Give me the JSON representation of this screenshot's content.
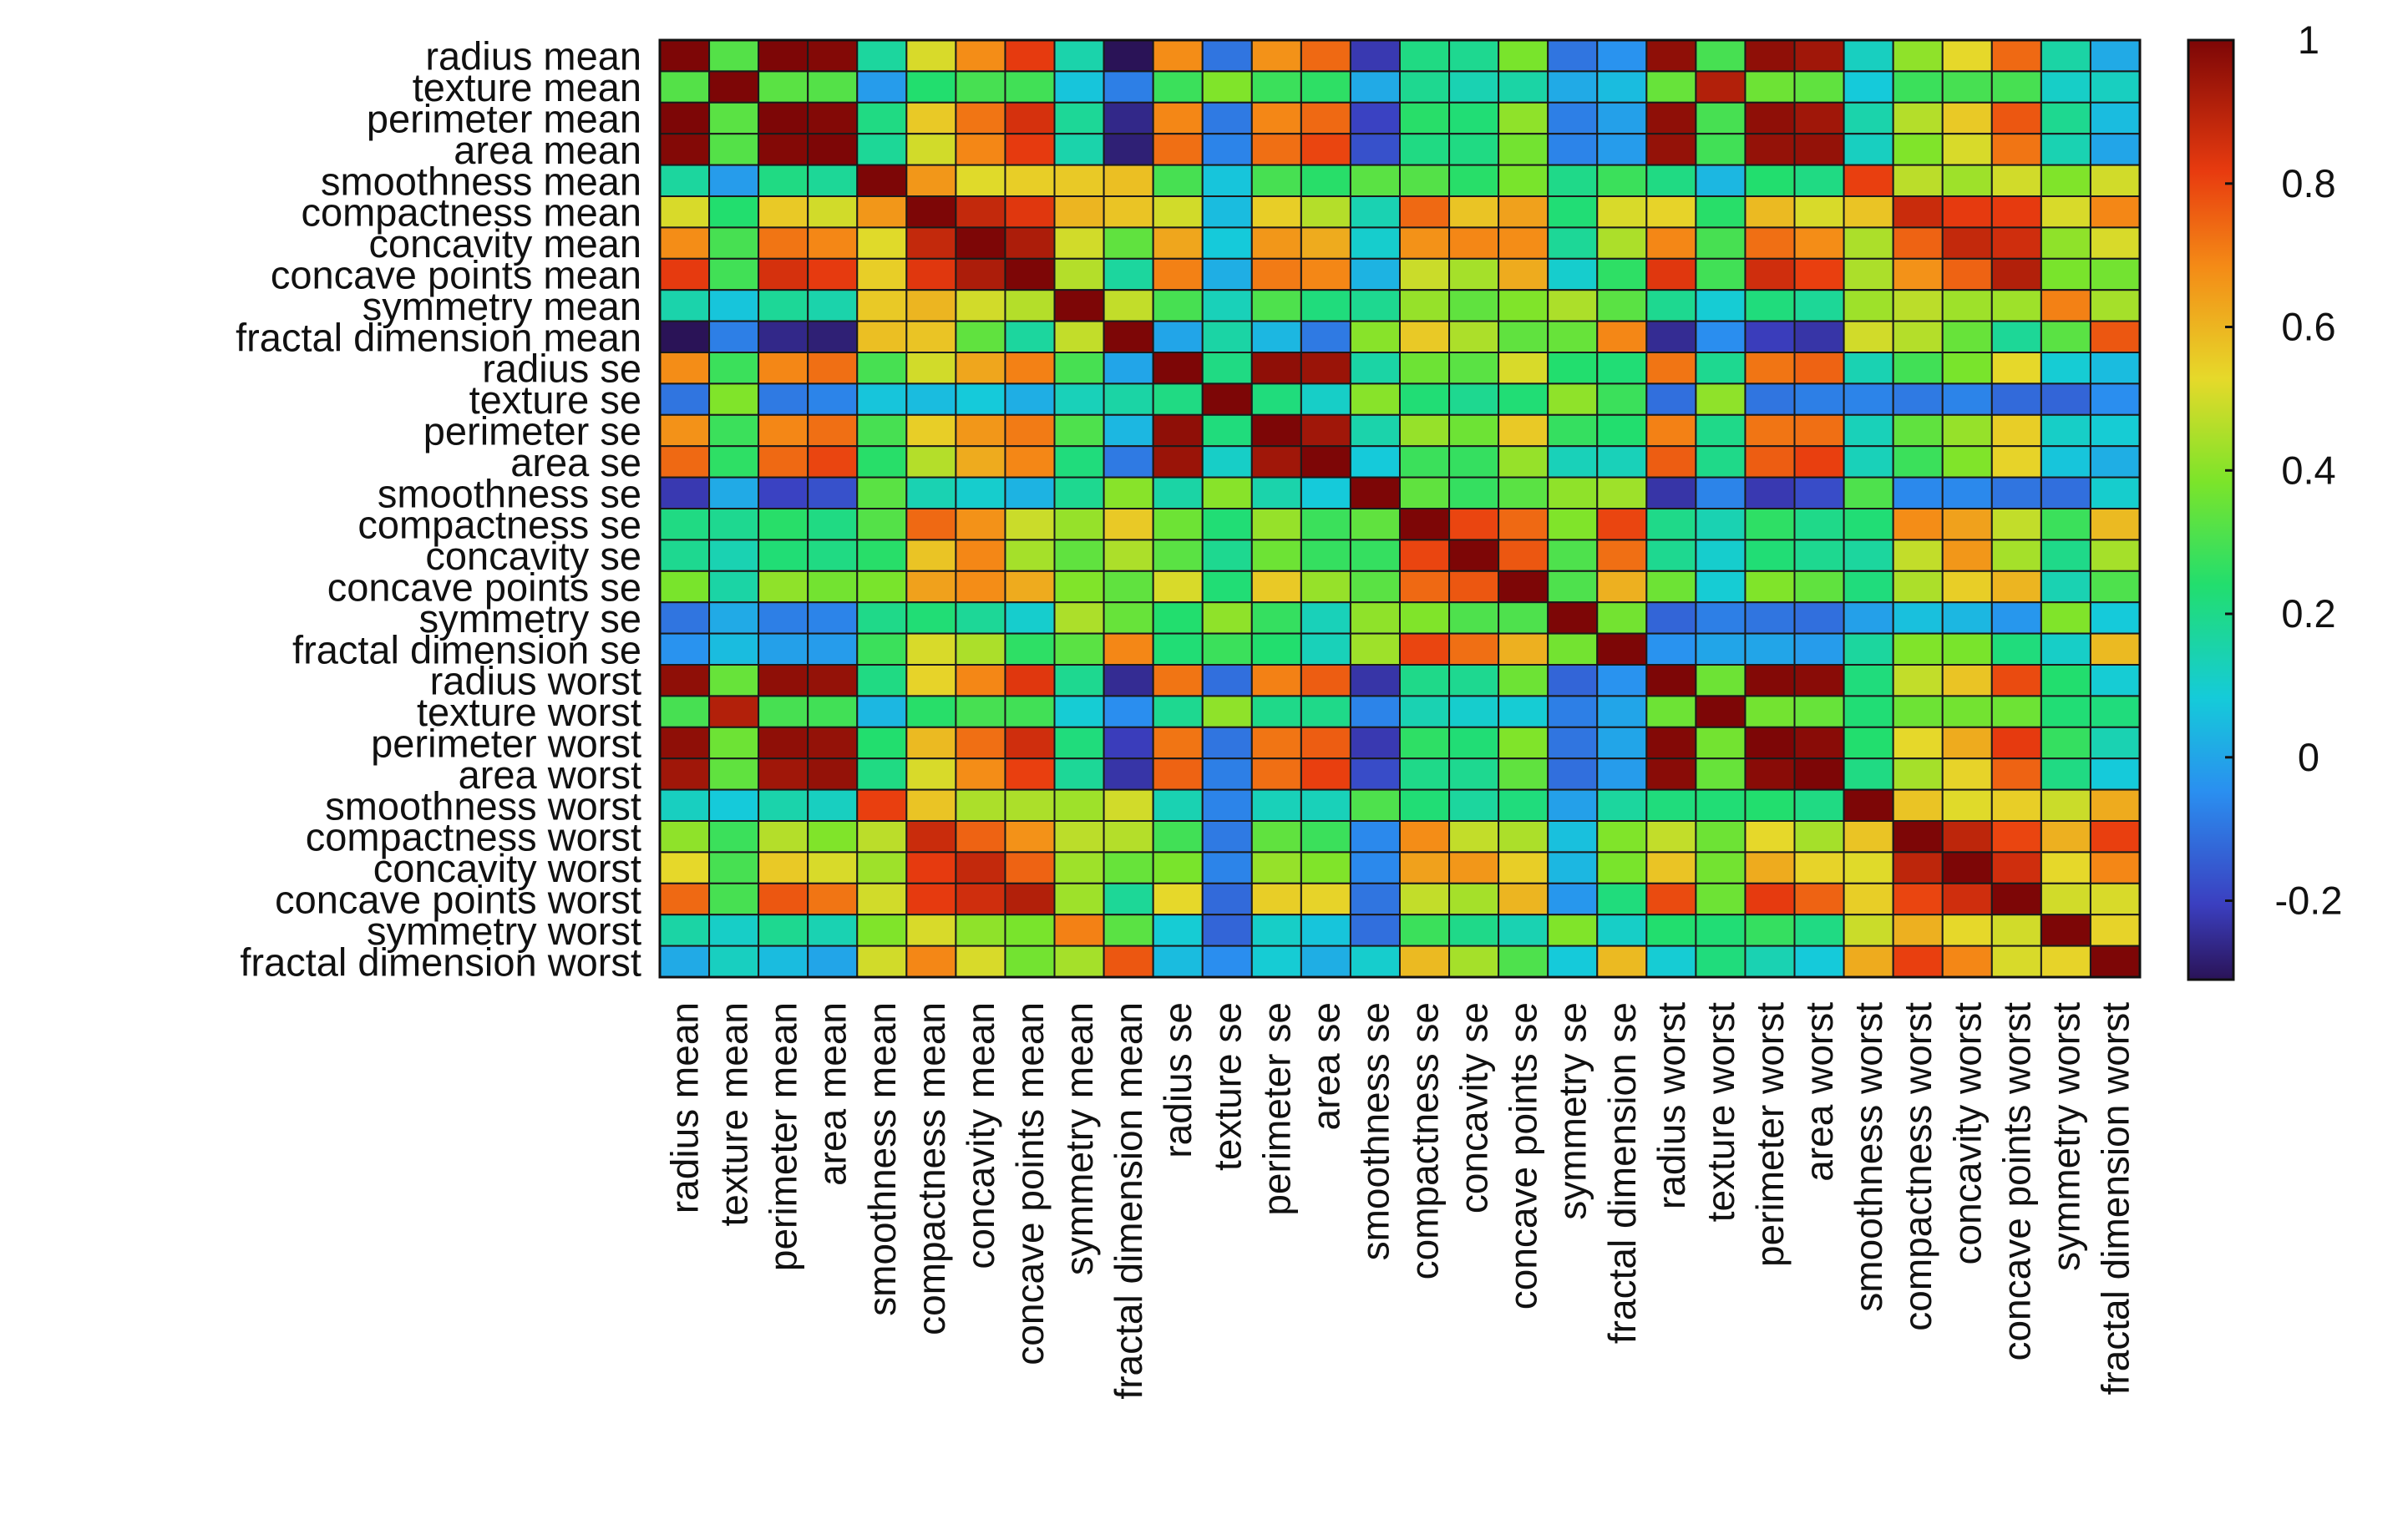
{
  "chart_data": {
    "type": "heatmap",
    "title": "",
    "xlabel": "",
    "ylabel": "",
    "labels": [
      "radius mean",
      "texture mean",
      "perimeter mean",
      "area mean",
      "smoothness mean",
      "compactness mean",
      "concavity mean",
      "concave points mean",
      "symmetry mean",
      "fractal dimension mean",
      "radius se",
      "texture se",
      "perimeter se",
      "area se",
      "smoothness se",
      "compactness se",
      "concavity se",
      "concave points se",
      "symmetry se",
      "fractal dimension se",
      "radius worst",
      "texture worst",
      "perimeter worst",
      "area worst",
      "smoothness worst",
      "compactness worst",
      "concavity worst",
      "concave points worst",
      "symmetry worst",
      "fractal dimension worst"
    ],
    "vrange": [
      -0.31,
      1
    ],
    "colorbar_ticks": [
      {
        "value": 1,
        "label": "1"
      },
      {
        "value": 0.8,
        "label": "0.8"
      },
      {
        "value": 0.6,
        "label": "0.6"
      },
      {
        "value": 0.4,
        "label": "0.4"
      },
      {
        "value": 0.2,
        "label": "0.2"
      },
      {
        "value": 0,
        "label": "0"
      },
      {
        "value": -0.2,
        "label": "-0.2"
      }
    ],
    "matrix": [
      [
        1.0,
        0.32,
        1.0,
        0.99,
        0.17,
        0.51,
        0.68,
        0.82,
        0.15,
        -0.31,
        0.68,
        -0.1,
        0.67,
        0.74,
        -0.22,
        0.21,
        0.19,
        0.38,
        -0.1,
        -0.04,
        0.97,
        0.3,
        0.97,
        0.94,
        0.12,
        0.41,
        0.53,
        0.74,
        0.16,
        0.01
      ],
      [
        0.32,
        1.0,
        0.33,
        0.32,
        -0.02,
        0.24,
        0.3,
        0.29,
        0.07,
        -0.08,
        0.28,
        0.39,
        0.28,
        0.26,
        0.01,
        0.19,
        0.14,
        0.16,
        0.01,
        0.05,
        0.35,
        0.91,
        0.36,
        0.34,
        0.08,
        0.28,
        0.3,
        0.3,
        0.11,
        0.12
      ],
      [
        1.0,
        0.33,
        1.0,
        0.99,
        0.21,
        0.56,
        0.72,
        0.85,
        0.18,
        -0.26,
        0.69,
        -0.09,
        0.69,
        0.74,
        -0.2,
        0.25,
        0.23,
        0.41,
        -0.08,
        -0.01,
        0.97,
        0.3,
        0.97,
        0.94,
        0.15,
        0.46,
        0.56,
        0.77,
        0.19,
        0.05
      ],
      [
        0.99,
        0.32,
        0.99,
        1.0,
        0.18,
        0.5,
        0.69,
        0.82,
        0.15,
        -0.28,
        0.73,
        -0.07,
        0.73,
        0.8,
        -0.17,
        0.21,
        0.21,
        0.37,
        -0.07,
        -0.02,
        0.96,
        0.29,
        0.96,
        0.96,
        0.12,
        0.39,
        0.51,
        0.72,
        0.14,
        0.0
      ],
      [
        0.17,
        -0.02,
        0.21,
        0.18,
        1.0,
        0.66,
        0.52,
        0.55,
        0.56,
        0.58,
        0.3,
        0.07,
        0.3,
        0.25,
        0.33,
        0.32,
        0.25,
        0.38,
        0.2,
        0.28,
        0.21,
        0.04,
        0.24,
        0.21,
        0.81,
        0.47,
        0.43,
        0.5,
        0.39,
        0.5
      ],
      [
        0.51,
        0.24,
        0.56,
        0.5,
        0.66,
        1.0,
        0.88,
        0.83,
        0.6,
        0.57,
        0.5,
        0.05,
        0.55,
        0.46,
        0.14,
        0.74,
        0.57,
        0.64,
        0.23,
        0.51,
        0.54,
        0.25,
        0.59,
        0.51,
        0.57,
        0.87,
        0.82,
        0.82,
        0.51,
        0.69
      ],
      [
        0.68,
        0.3,
        0.72,
        0.69,
        0.52,
        0.88,
        1.0,
        0.92,
        0.5,
        0.34,
        0.63,
        0.08,
        0.66,
        0.62,
        0.1,
        0.67,
        0.69,
        0.68,
        0.18,
        0.45,
        0.69,
        0.3,
        0.73,
        0.68,
        0.45,
        0.75,
        0.88,
        0.86,
        0.41,
        0.51
      ],
      [
        0.82,
        0.29,
        0.85,
        0.82,
        0.55,
        0.83,
        0.92,
        1.0,
        0.46,
        0.17,
        0.7,
        0.02,
        0.71,
        0.69,
        0.03,
        0.49,
        0.44,
        0.62,
        0.1,
        0.26,
        0.83,
        0.29,
        0.86,
        0.81,
        0.45,
        0.67,
        0.75,
        0.91,
        0.38,
        0.37
      ],
      [
        0.15,
        0.07,
        0.18,
        0.15,
        0.56,
        0.6,
        0.5,
        0.46,
        1.0,
        0.48,
        0.3,
        0.13,
        0.31,
        0.22,
        0.19,
        0.42,
        0.34,
        0.39,
        0.45,
        0.33,
        0.19,
        0.09,
        0.22,
        0.18,
        0.43,
        0.47,
        0.43,
        0.43,
        0.7,
        0.44
      ],
      [
        -0.31,
        -0.08,
        -0.26,
        -0.28,
        0.58,
        0.57,
        0.34,
        0.17,
        0.48,
        1.0,
        0.0,
        0.16,
        0.04,
        -0.09,
        0.4,
        0.56,
        0.45,
        0.34,
        0.35,
        0.69,
        -0.25,
        -0.05,
        -0.21,
        -0.23,
        0.5,
        0.46,
        0.35,
        0.18,
        0.33,
        0.77
      ],
      [
        0.68,
        0.28,
        0.69,
        0.73,
        0.3,
        0.5,
        0.63,
        0.7,
        0.3,
        0.0,
        1.0,
        0.21,
        0.97,
        0.95,
        0.16,
        0.36,
        0.33,
        0.51,
        0.24,
        0.23,
        0.72,
        0.19,
        0.72,
        0.75,
        0.14,
        0.29,
        0.38,
        0.53,
        0.09,
        0.05
      ],
      [
        -0.1,
        0.39,
        -0.09,
        -0.07,
        0.07,
        0.05,
        0.08,
        0.02,
        0.13,
        0.16,
        0.21,
        1.0,
        0.22,
        0.11,
        0.4,
        0.23,
        0.19,
        0.23,
        0.41,
        0.28,
        -0.11,
        0.41,
        -0.1,
        -0.08,
        -0.07,
        -0.09,
        -0.07,
        -0.12,
        -0.13,
        -0.05
      ],
      [
        0.67,
        0.28,
        0.69,
        0.73,
        0.3,
        0.55,
        0.66,
        0.71,
        0.31,
        0.04,
        0.97,
        0.22,
        1.0,
        0.94,
        0.15,
        0.42,
        0.36,
        0.56,
        0.27,
        0.24,
        0.7,
        0.2,
        0.72,
        0.73,
        0.13,
        0.34,
        0.42,
        0.55,
        0.11,
        0.09
      ],
      [
        0.74,
        0.26,
        0.74,
        0.8,
        0.25,
        0.46,
        0.62,
        0.69,
        0.22,
        -0.09,
        0.95,
        0.11,
        0.94,
        1.0,
        0.08,
        0.28,
        0.27,
        0.42,
        0.13,
        0.13,
        0.76,
        0.2,
        0.76,
        0.81,
        0.13,
        0.28,
        0.39,
        0.54,
        0.07,
        0.02
      ],
      [
        -0.22,
        0.01,
        -0.2,
        -0.17,
        0.33,
        0.14,
        0.1,
        0.03,
        0.19,
        0.4,
        0.16,
        0.4,
        0.15,
        0.08,
        1.0,
        0.34,
        0.27,
        0.33,
        0.41,
        0.43,
        -0.23,
        -0.07,
        -0.22,
        -0.18,
        0.31,
        -0.06,
        -0.06,
        -0.1,
        -0.11,
        0.1
      ],
      [
        0.21,
        0.19,
        0.25,
        0.21,
        0.32,
        0.74,
        0.67,
        0.49,
        0.42,
        0.56,
        0.36,
        0.23,
        0.42,
        0.28,
        0.34,
        1.0,
        0.8,
        0.74,
        0.39,
        0.8,
        0.2,
        0.14,
        0.26,
        0.2,
        0.23,
        0.68,
        0.64,
        0.48,
        0.28,
        0.59
      ],
      [
        0.19,
        0.14,
        0.23,
        0.21,
        0.25,
        0.57,
        0.69,
        0.44,
        0.34,
        0.45,
        0.33,
        0.19,
        0.36,
        0.27,
        0.27,
        0.8,
        1.0,
        0.77,
        0.31,
        0.73,
        0.19,
        0.1,
        0.23,
        0.19,
        0.17,
        0.48,
        0.66,
        0.44,
        0.2,
        0.44
      ],
      [
        0.38,
        0.16,
        0.41,
        0.37,
        0.38,
        0.64,
        0.68,
        0.62,
        0.39,
        0.34,
        0.51,
        0.23,
        0.56,
        0.42,
        0.33,
        0.74,
        0.77,
        1.0,
        0.31,
        0.61,
        0.36,
        0.09,
        0.39,
        0.34,
        0.22,
        0.45,
        0.55,
        0.6,
        0.14,
        0.31
      ],
      [
        -0.1,
        0.01,
        -0.08,
        -0.07,
        0.2,
        0.23,
        0.18,
        0.1,
        0.45,
        0.35,
        0.24,
        0.41,
        0.27,
        0.13,
        0.41,
        0.39,
        0.31,
        0.31,
        1.0,
        0.37,
        -0.13,
        -0.08,
        -0.1,
        -0.11,
        -0.01,
        0.06,
        0.04,
        -0.03,
        0.39,
        0.08
      ],
      [
        -0.04,
        0.05,
        -0.01,
        -0.02,
        0.28,
        0.51,
        0.45,
        0.26,
        0.33,
        0.69,
        0.23,
        0.28,
        0.24,
        0.13,
        0.43,
        0.8,
        0.73,
        0.61,
        0.37,
        1.0,
        -0.04,
        -0.0,
        -0.0,
        -0.02,
        0.17,
        0.39,
        0.38,
        0.22,
        0.11,
        0.59
      ],
      [
        0.97,
        0.35,
        0.97,
        0.96,
        0.21,
        0.54,
        0.69,
        0.83,
        0.19,
        -0.25,
        0.72,
        -0.11,
        0.7,
        0.76,
        -0.23,
        0.2,
        0.19,
        0.36,
        -0.13,
        -0.04,
        1.0,
        0.36,
        0.99,
        0.98,
        0.22,
        0.48,
        0.57,
        0.79,
        0.24,
        0.09
      ],
      [
        0.3,
        0.91,
        0.3,
        0.29,
        0.04,
        0.25,
        0.3,
        0.29,
        0.09,
        -0.05,
        0.19,
        0.41,
        0.2,
        0.2,
        -0.07,
        0.14,
        0.1,
        0.09,
        -0.08,
        -0.0,
        0.36,
        1.0,
        0.37,
        0.35,
        0.23,
        0.36,
        0.37,
        0.36,
        0.23,
        0.22
      ],
      [
        0.97,
        0.36,
        0.97,
        0.96,
        0.24,
        0.59,
        0.73,
        0.86,
        0.22,
        -0.21,
        0.72,
        -0.1,
        0.72,
        0.76,
        -0.22,
        0.26,
        0.23,
        0.39,
        -0.1,
        -0.0,
        0.99,
        0.37,
        1.0,
        0.98,
        0.24,
        0.53,
        0.62,
        0.82,
        0.27,
        0.14
      ],
      [
        0.94,
        0.34,
        0.94,
        0.96,
        0.21,
        0.51,
        0.68,
        0.81,
        0.18,
        -0.23,
        0.75,
        -0.08,
        0.73,
        0.81,
        -0.18,
        0.2,
        0.19,
        0.34,
        -0.11,
        -0.02,
        0.98,
        0.35,
        0.98,
        1.0,
        0.21,
        0.44,
        0.54,
        0.75,
        0.21,
        0.08
      ],
      [
        0.12,
        0.08,
        0.15,
        0.12,
        0.81,
        0.57,
        0.45,
        0.45,
        0.43,
        0.5,
        0.14,
        -0.07,
        0.13,
        0.13,
        0.31,
        0.23,
        0.17,
        0.22,
        -0.01,
        0.17,
        0.22,
        0.23,
        0.24,
        0.21,
        1.0,
        0.57,
        0.52,
        0.55,
        0.49,
        0.62
      ],
      [
        0.41,
        0.28,
        0.46,
        0.39,
        0.47,
        0.87,
        0.75,
        0.67,
        0.47,
        0.46,
        0.29,
        -0.09,
        0.34,
        0.28,
        -0.06,
        0.68,
        0.48,
        0.45,
        0.06,
        0.39,
        0.48,
        0.36,
        0.53,
        0.44,
        0.57,
        1.0,
        0.89,
        0.8,
        0.61,
        0.81
      ],
      [
        0.53,
        0.3,
        0.56,
        0.51,
        0.43,
        0.82,
        0.88,
        0.75,
        0.43,
        0.35,
        0.38,
        -0.07,
        0.42,
        0.39,
        -0.06,
        0.64,
        0.66,
        0.55,
        0.04,
        0.38,
        0.57,
        0.37,
        0.62,
        0.54,
        0.52,
        0.89,
        1.0,
        0.86,
        0.53,
        0.69
      ],
      [
        0.74,
        0.3,
        0.77,
        0.72,
        0.5,
        0.82,
        0.86,
        0.91,
        0.43,
        0.18,
        0.53,
        -0.12,
        0.55,
        0.54,
        -0.1,
        0.48,
        0.44,
        0.6,
        -0.03,
        0.22,
        0.79,
        0.36,
        0.82,
        0.75,
        0.55,
        0.8,
        0.86,
        1.0,
        0.5,
        0.51
      ],
      [
        0.16,
        0.11,
        0.19,
        0.14,
        0.39,
        0.51,
        0.41,
        0.38,
        0.7,
        0.33,
        0.09,
        -0.13,
        0.11,
        0.07,
        -0.11,
        0.28,
        0.2,
        0.14,
        0.39,
        0.11,
        0.24,
        0.23,
        0.27,
        0.21,
        0.49,
        0.61,
        0.53,
        0.5,
        1.0,
        0.54
      ],
      [
        0.01,
        0.12,
        0.05,
        0.0,
        0.5,
        0.69,
        0.51,
        0.37,
        0.44,
        0.77,
        0.05,
        -0.05,
        0.09,
        0.02,
        0.1,
        0.59,
        0.44,
        0.31,
        0.08,
        0.59,
        0.09,
        0.22,
        0.14,
        0.08,
        0.62,
        0.81,
        0.69,
        0.51,
        0.54,
        1.0
      ]
    ]
  }
}
